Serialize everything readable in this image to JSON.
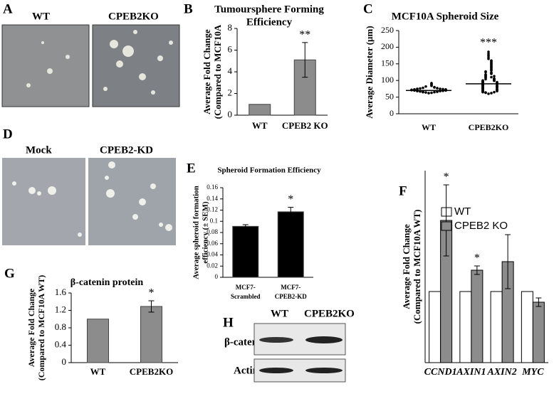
{
  "panel_letters": [
    "A",
    "B",
    "C",
    "D",
    "E",
    "F",
    "G",
    "H"
  ],
  "images": {
    "A": [
      "WT",
      "CPEB2KO"
    ],
    "D": [
      "Mock",
      "CPEB2-KD"
    ],
    "H": {
      "columns": [
        "WT",
        "CPEB2KO"
      ],
      "rows": [
        "β-catenin",
        "Actin"
      ]
    }
  },
  "chart_data": [
    {
      "type": "bar",
      "title": [
        "Tumoursphere Forming",
        "Efficiency"
      ],
      "y_label": [
        "Average Fold Change",
        "(Compared to MCF10A"
      ],
      "categories": [
        "WT",
        "CPEB2 KO"
      ],
      "values": [
        1,
        5.1
      ],
      "errors": [
        0,
        1.6
      ],
      "annotations": [
        null,
        "**"
      ],
      "color": "#8c8c8c",
      "ylim": [
        0,
        8
      ],
      "yticks": [
        0,
        2,
        4,
        6,
        8
      ]
    },
    {
      "type": "dot",
      "title": [
        "MCF10A Spheroid Size"
      ],
      "y_label": [
        "Average Diameter (µm)"
      ],
      "categories": [
        "WT",
        "CPEB2KO"
      ],
      "annotations": [
        null,
        "***"
      ],
      "color": "#000000",
      "medians": [
        70,
        90
      ],
      "values": [
        [
          62,
          63,
          64,
          65,
          65,
          66,
          66,
          67,
          67,
          68,
          68,
          68,
          69,
          69,
          69,
          70,
          70,
          70,
          70,
          71,
          71,
          71,
          72,
          72,
          72,
          73,
          73,
          74,
          74,
          75,
          75,
          76,
          77,
          78,
          79,
          80,
          82,
          84,
          86,
          88,
          90,
          92
        ],
        [
          60,
          62,
          63,
          64,
          65,
          65,
          66,
          67,
          68,
          68,
          69,
          70,
          70,
          71,
          72,
          72,
          73,
          74,
          75,
          75,
          76,
          77,
          78,
          78,
          79,
          80,
          80,
          81,
          82,
          82,
          83,
          84,
          85,
          85,
          86,
          87,
          88,
          88,
          89,
          90,
          90,
          91,
          92,
          92,
          93,
          94,
          95,
          95,
          96,
          97,
          98,
          99,
          100,
          100,
          102,
          103,
          104,
          105,
          106,
          108,
          110,
          110,
          112,
          113,
          115,
          116,
          118,
          120,
          122,
          124,
          125,
          127,
          130,
          132,
          135,
          138,
          140,
          142,
          145,
          148,
          150,
          153,
          155,
          158,
          160,
          165,
          170,
          175,
          180,
          186
        ]
      ],
      "ylim": [
        0,
        250
      ],
      "yticks": [
        0,
        50,
        100,
        150,
        200,
        250
      ]
    },
    {
      "type": "bar",
      "title": [
        "Spheroid Formation Efficiency"
      ],
      "y_label": [
        "Average spheroid formation",
        "efficiency (± SEM)"
      ],
      "categories": [
        [
          "MCF7-",
          "Scrambled"
        ],
        [
          "MCF7-",
          "CPEB2-KD"
        ]
      ],
      "values": [
        0.091,
        0.117
      ],
      "errors": [
        0.003,
        0.008
      ],
      "annotations": [
        null,
        "*"
      ],
      "color": "#000000",
      "ylim": [
        0,
        0.16
      ],
      "yticks": [
        0,
        0.02,
        0.04,
        0.06,
        0.08,
        0.1,
        0.12,
        0.14,
        0.16
      ]
    },
    {
      "type": "grouped-bar",
      "y_label": [
        "Average Fold Change",
        "(Compared to MCF10A WT)"
      ],
      "categories": [
        "CCND1",
        "AXIN1",
        "AXIN2",
        "MYC"
      ],
      "series": [
        {
          "name": "WT",
          "color": "#ffffff",
          "values": [
            1,
            1,
            1,
            1
          ]
        },
        {
          "name": "CPEB2 KO",
          "color": "#8c8c8c",
          "values": [
            2.0,
            1.3,
            1.42,
            0.85
          ],
          "errors": [
            0.5,
            0.06,
            0.38,
            0.06
          ],
          "annotations": [
            "*",
            "*",
            null,
            null
          ]
        }
      ],
      "ylim": [
        0,
        2.7
      ]
    },
    {
      "type": "bar",
      "title": [
        "β-catenin protein"
      ],
      "y_label": [
        "Average Fold Change",
        "(Compared to MCF10A WT)"
      ],
      "categories": [
        "WT",
        "CPEB2KO"
      ],
      "values": [
        1,
        1.29
      ],
      "errors": [
        0,
        0.13
      ],
      "annotations": [
        null,
        "*"
      ],
      "color": "#8c8c8c",
      "ylim": [
        0,
        1.6
      ],
      "yticks": [
        0,
        0.4,
        0.8,
        1.2,
        1.6
      ]
    }
  ]
}
